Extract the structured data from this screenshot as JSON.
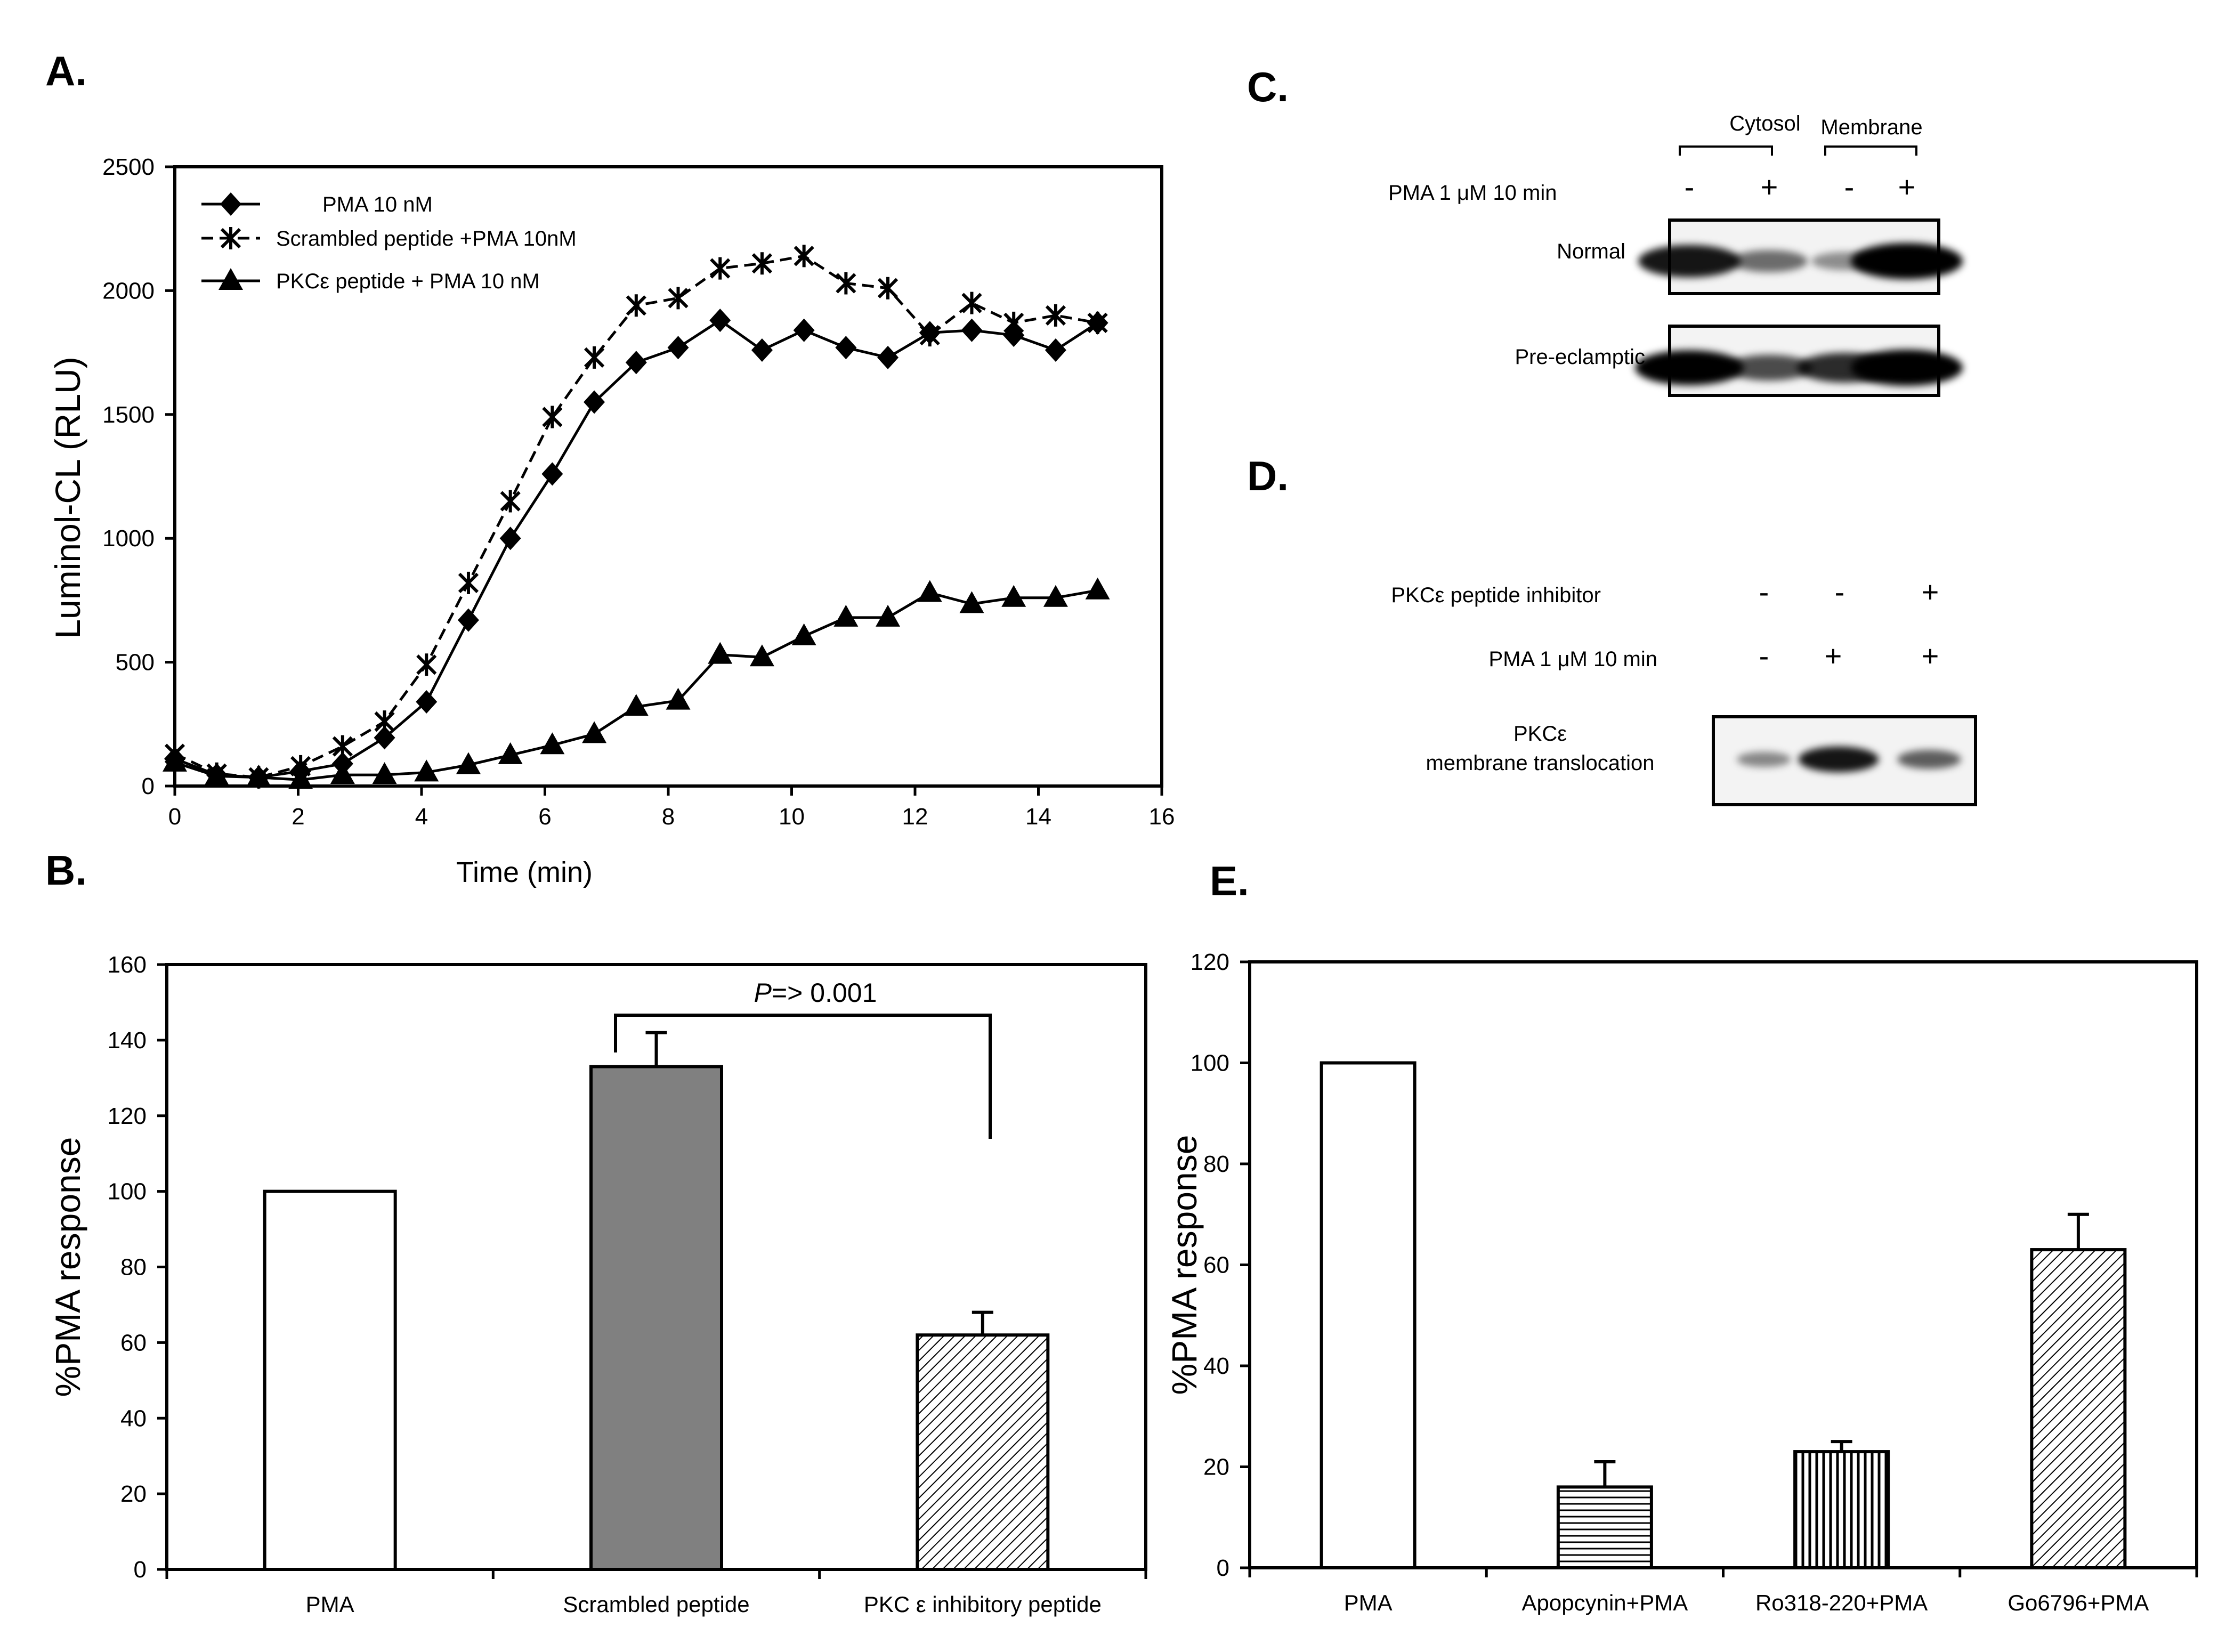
{
  "panel_labels": {
    "a": "A.",
    "b": "B.",
    "c": "C.",
    "d": "D.",
    "e": "E."
  },
  "chart_data": [
    {
      "panel": "A",
      "type": "line",
      "title": "",
      "xlabel": "Time (min)",
      "ylabel": "Luminol-CL (RLU)",
      "xlim": [
        0,
        16
      ],
      "ylim": [
        0,
        2500
      ],
      "xticks": [
        "0",
        "2",
        "4",
        "6",
        "8",
        "10",
        "12",
        "14",
        "16"
      ],
      "yticks": [
        "0",
        "500",
        "1000",
        "1500",
        "2000",
        "2500"
      ],
      "x": [
        0,
        0.68,
        1.36,
        2.04,
        2.72,
        3.4,
        4.08,
        4.76,
        5.44,
        6.12,
        6.8,
        7.48,
        8.16,
        8.84,
        9.52,
        10.2,
        10.88,
        11.56,
        12.24,
        12.92,
        13.6,
        14.28,
        14.96
      ],
      "series": [
        {
          "name": "PMA 10 nM",
          "marker": "diamond",
          "dash": "none",
          "values": [
            110,
            45,
            35,
            60,
            90,
            195,
            340,
            670,
            1000,
            1260,
            1550,
            1710,
            1770,
            1880,
            1760,
            1840,
            1770,
            1730,
            1830,
            1840,
            1820,
            1760,
            1870
          ]
        },
        {
          "name": "Scrambled peptide +PMA 10nM",
          "marker": "star",
          "dash": "dashed",
          "values": [
            130,
            50,
            35,
            80,
            160,
            260,
            490,
            820,
            1150,
            1490,
            1730,
            1940,
            1970,
            2090,
            2110,
            2140,
            2030,
            2010,
            1820,
            1950,
            1870,
            1900,
            1870
          ]
        },
        {
          "name": "PKCε peptide + PMA 10 nM",
          "marker": "triangle",
          "dash": "none",
          "values": [
            95,
            40,
            35,
            25,
            45,
            45,
            55,
            85,
            125,
            165,
            210,
            320,
            345,
            530,
            520,
            605,
            680,
            680,
            780,
            735,
            760,
            760,
            790
          ]
        }
      ]
    },
    {
      "panel": "B",
      "type": "bar",
      "ylabel": "%PMA response",
      "ylim": [
        0,
        160
      ],
      "yticks": [
        "0",
        "20",
        "40",
        "60",
        "80",
        "100",
        "120",
        "140",
        "160"
      ],
      "categories": [
        "PMA",
        "Scrambled peptide",
        "PKC ε inhibitory peptide"
      ],
      "values": [
        100,
        133,
        62
      ],
      "errors": [
        0,
        9,
        6
      ],
      "fills": [
        "white",
        "gray",
        "diagonal"
      ],
      "annotation": {
        "italic": "P",
        "text": "=> 0.001"
      }
    },
    {
      "panel": "E",
      "type": "bar",
      "ylabel": "%PMA response",
      "ylim": [
        0,
        120
      ],
      "yticks": [
        "0",
        "20",
        "40",
        "60",
        "80",
        "100",
        "120"
      ],
      "categories": [
        "PMA",
        "Apopcynin+PMA",
        "Ro318-220+PMA",
        "Go6796+PMA"
      ],
      "values": [
        100,
        16,
        23,
        63
      ],
      "errors": [
        0,
        5,
        2,
        7
      ],
      "fills": [
        "white",
        "horizontal",
        "vertical",
        "diagonal"
      ]
    }
  ],
  "blot_c": {
    "col_group_left": "Cytosol",
    "col_group_right": "Membrane",
    "treatment_label": "PMA 1 μM 10 min",
    "signs": [
      "-",
      "+",
      "-",
      "+"
    ],
    "row_labels": [
      "Normal",
      "Pre-eclamptic"
    ],
    "band_intensity": [
      [
        0.85,
        0.45,
        0.3,
        1.0
      ],
      [
        0.95,
        0.6,
        0.75,
        1.0
      ]
    ]
  },
  "blot_d": {
    "row1_label": "PKCε peptide inhibitor",
    "row1_signs": [
      "-",
      "-",
      "+"
    ],
    "row2_label": "PMA 1 μM 10 min",
    "row2_signs": [
      "-",
      "+",
      "+"
    ],
    "band_label_line1": "PKCε",
    "band_label_line2": "membrane translocation",
    "band_intensity": [
      0.35,
      0.9,
      0.55
    ]
  }
}
